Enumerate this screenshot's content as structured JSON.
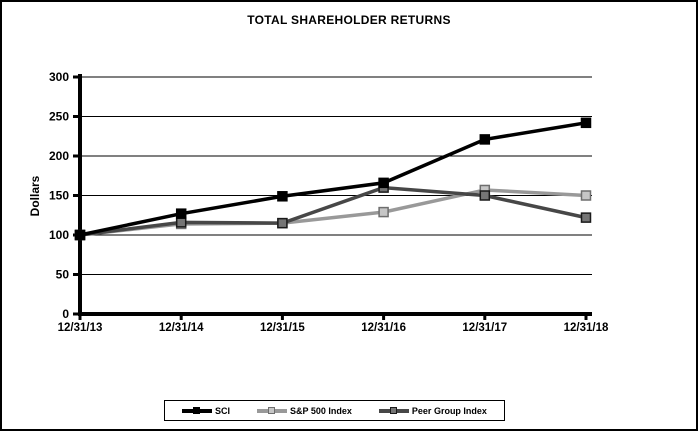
{
  "window": {
    "background": "#ffffff",
    "border_color": "#000000"
  },
  "chart_data": {
    "type": "line",
    "title": "TOTAL SHAREHOLDER RETURNS",
    "xlabel": "",
    "ylabel": "Dollars",
    "x_categories": [
      "12/31/13",
      "12/31/14",
      "12/31/15",
      "12/31/16",
      "12/31/17",
      "12/31/18"
    ],
    "y_ticks": [
      0,
      50,
      100,
      150,
      200,
      250,
      300
    ],
    "ylim": [
      0,
      300
    ],
    "grid": "horizontal",
    "legend_position": "bottom",
    "series": [
      {
        "name": "SCI",
        "values": [
          100,
          127,
          149,
          166,
          221,
          242
        ],
        "line_color": "#000000",
        "marker_fill": "#000000",
        "marker_edge": "#000000"
      },
      {
        "name": "S&P 500 Index",
        "values": [
          100,
          114,
          115,
          129,
          157,
          150
        ],
        "line_color": "#999999",
        "marker_fill": "#c6c6c6",
        "marker_edge": "#6e6e6e"
      },
      {
        "name": "Peer Group Index",
        "values": [
          100,
          116,
          115,
          160,
          150,
          122
        ],
        "line_color": "#474747",
        "marker_fill": "#757575",
        "marker_edge": "#1a1a1a"
      }
    ]
  }
}
